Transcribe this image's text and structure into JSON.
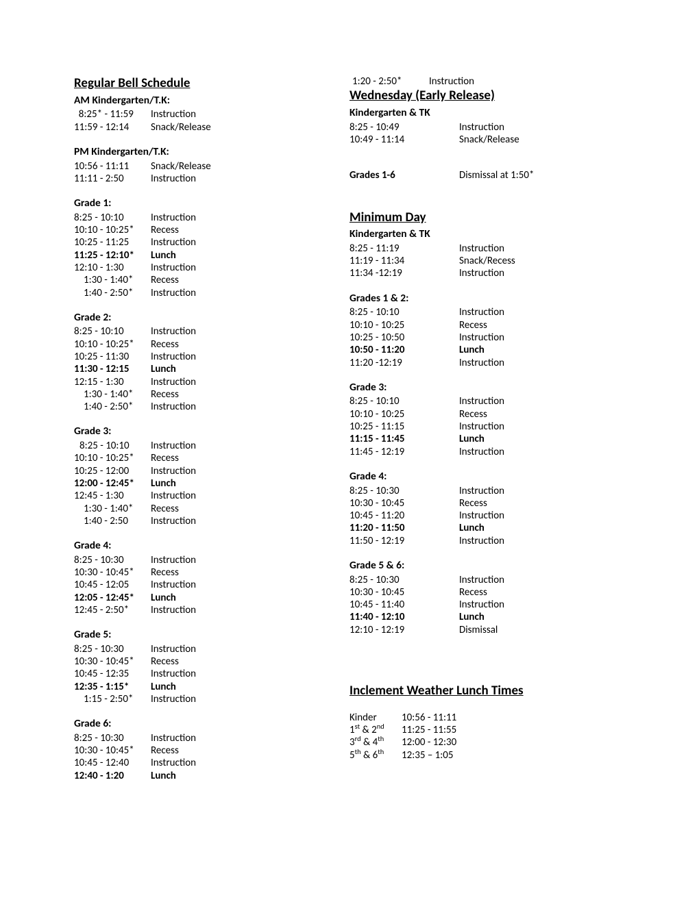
{
  "regular": {
    "title": "Regular Bell Schedule",
    "blocks": [
      {
        "header": "AM Kindergarten/T.K:",
        "rows": [
          {
            "time": "  8:25* - 11:59",
            "label": "Instruction"
          },
          {
            "time": "11:59 - 12:14",
            "label": "Snack/Release"
          }
        ]
      },
      {
        "header": "PM Kindergarten/T.K:",
        "rows": [
          {
            "time": "10:56 - 11:11",
            "label": "Snack/Release"
          },
          {
            "time": "11:11 - 2:50",
            "label": "Instruction"
          }
        ]
      },
      {
        "header": "Grade 1:",
        "rows": [
          {
            "time": "8:25 - 10:10",
            "label": "Instruction"
          },
          {
            "time": "10:10 - 10:25*",
            "label": "Recess"
          },
          {
            "time": "10:25 - 11:25",
            "label": "Instruction"
          },
          {
            "time": "11:25 - 12:10*",
            "label": "Lunch",
            "bold": true
          },
          {
            "time": "12:10 - 1:30",
            "label": "Instruction"
          },
          {
            "time": "1:30 - 1:40*",
            "label": "Recess",
            "indent": true
          },
          {
            "time": "1:40 - 2:50*",
            "label": "Instruction",
            "indent": true
          }
        ]
      },
      {
        "header": "Grade 2:",
        "rows": [
          {
            "time": "8:25 - 10:10",
            "label": "Instruction"
          },
          {
            "time": "10:10 - 10:25*",
            "label": "Recess"
          },
          {
            "time": "10:25 - 11:30",
            "label": "Instruction"
          },
          {
            "time": "11:30 - 12:15",
            "label": "Lunch",
            "bold": true
          },
          {
            "time": "12:15 - 1:30",
            "label": "Instruction"
          },
          {
            "time": "1:30 - 1:40*",
            "label": "Recess",
            "indent": true
          },
          {
            "time": "1:40 - 2:50*",
            "label": "Instruction",
            "indent": true
          }
        ]
      },
      {
        "header": "Grade 3:",
        "rows": [
          {
            "time": "8:25 - 10:10",
            "label": "Instruction",
            "indent2": true
          },
          {
            "time": "10:10 - 10:25*",
            "label": "Recess"
          },
          {
            "time": "10:25 - 12:00",
            "label": "Instruction"
          },
          {
            "time": "12:00 - 12:45*",
            "label": "Lunch",
            "bold": true
          },
          {
            "time": "12:45 - 1:30",
            "label": "Instruction"
          },
          {
            "time": "1:30 - 1:40*",
            "label": "Recess",
            "indent": true
          },
          {
            "time": "1:40 - 2:50",
            "label": "Instruction",
            "indent": true
          }
        ]
      },
      {
        "header": "Grade 4:",
        "rows": [
          {
            "time": "8:25 - 10:30",
            "label": "Instruction"
          },
          {
            "time": "10:30 - 10:45*",
            "label": "Recess"
          },
          {
            "time": "10:45 - 12:05",
            "label": "Instruction"
          },
          {
            "time": "12:05 - 12:45*",
            "label": "Lunch",
            "bold": true
          },
          {
            "time": "12:45 - 2:50*",
            "label": "Instruction"
          }
        ]
      },
      {
        "header": "Grade 5:",
        "rows": [
          {
            "time": "8:25 - 10:30",
            "label": "Instruction"
          },
          {
            "time": "10:30 - 10:45*",
            "label": "Recess"
          },
          {
            "time": "10:45 - 12:35",
            "label": "Instruction"
          },
          {
            "time": "12:35 - 1:15*",
            "label": "Lunch",
            "bold": true
          },
          {
            "time": "1:15 - 2:50*",
            "label": "Instruction",
            "indent": true
          }
        ]
      },
      {
        "header": "Grade 6:",
        "rows": [
          {
            "time": "8:25 - 10:30",
            "label": "Instruction"
          },
          {
            "time": "10:30 - 10:45*",
            "label": "Recess"
          },
          {
            "time": "10:45 - 12:40",
            "label": "Instruction"
          },
          {
            "time": "12:40 - 1:20",
            "label": "Lunch",
            "bold": true
          }
        ]
      }
    ]
  },
  "topRight": {
    "time": "1:20 - 2:50*",
    "label": "Instruction"
  },
  "wednesday": {
    "title": "Wednesday (Early Release)",
    "kheader": "Kindergarten & TK",
    "krows": [
      {
        "time": "8:25 - 10:49",
        "label": "Instruction"
      },
      {
        "time": "10:49 - 11:14",
        "label": "Snack/Release"
      }
    ],
    "dismissal_grade": "Grades 1-6",
    "dismissal_text": "Dismissal at 1:50*"
  },
  "minimum": {
    "title": "Minimum Day",
    "blocks": [
      {
        "header": "Kindergarten & TK",
        "rows": [
          {
            "time": "8:25 - 11:19",
            "label": "Instruction"
          },
          {
            "time": "11:19 - 11:34",
            "label": "Snack/Recess"
          },
          {
            "time": "11:34 -12:19",
            "label": "Instruction"
          }
        ]
      },
      {
        "header": "Grades 1 & 2:",
        "rows": [
          {
            "time": "8:25 - 10:10",
            "label": "Instruction"
          },
          {
            "time": "10:10 - 10:25",
            "label": "Recess"
          },
          {
            "time": "10:25 - 10:50",
            "label": "Instruction"
          },
          {
            "time": "10:50 - 11:20",
            "label": "Lunch",
            "bold": true
          },
          {
            "time": "11:20 -12:19",
            "label": "Instruction"
          }
        ]
      },
      {
        "header": "Grade 3:",
        "rows": [
          {
            "time": "8:25 - 10:10",
            "label": "Instruction"
          },
          {
            "time": "10:10 - 10:25",
            "label": "Recess"
          },
          {
            "time": "10:25 - 11:15",
            "label": "Instruction"
          },
          {
            "time": "11:15 - 11:45",
            "label": "Lunch",
            "bold": true
          },
          {
            "time": "11:45 - 12:19",
            "label": "Instruction"
          }
        ]
      },
      {
        "header": "Grade 4:",
        "rows": [
          {
            "time": "8:25 - 10:30",
            "label": "Instruction"
          },
          {
            "time": "10:30 - 10:45",
            "label": "Recess"
          },
          {
            "time": "10:45 - 11:20",
            "label": "Instruction"
          },
          {
            "time": "11:20 - 11:50",
            "label": "Lunch",
            "bold": true
          },
          {
            "time": "11:50 - 12:19",
            "label": "Instruction"
          }
        ]
      },
      {
        "header": "Grade 5 & 6:",
        "rows": [
          {
            "time": "8:25 - 10:30",
            "label": "Instruction"
          },
          {
            "time": "10:30 - 10:45",
            "label": "Recess"
          },
          {
            "time": "10:45 - 11:40",
            "label": "Instruction"
          },
          {
            "time": "11:40 - 12:10",
            "label": "Lunch",
            "bold": true
          },
          {
            "time": "12:10 - 12:19",
            "label": "Dismissal"
          }
        ]
      }
    ]
  },
  "inclement": {
    "title": "Inclement Weather Lunch Times",
    "rows": [
      {
        "grade_html": "Kinder",
        "time": "10:56 - 11:11"
      },
      {
        "grade_html": "1<sup>st</sup> & 2<sup>nd</sup>",
        "time": "11:25 - 11:55"
      },
      {
        "grade_html": "3<sup>rd</sup> & 4<sup>th</sup>",
        "time": "12:00 - 12:30"
      },
      {
        "grade_html": "5<sup>th</sup> & 6<sup>th</sup>",
        "time": "12:35 – 1:05"
      }
    ]
  }
}
